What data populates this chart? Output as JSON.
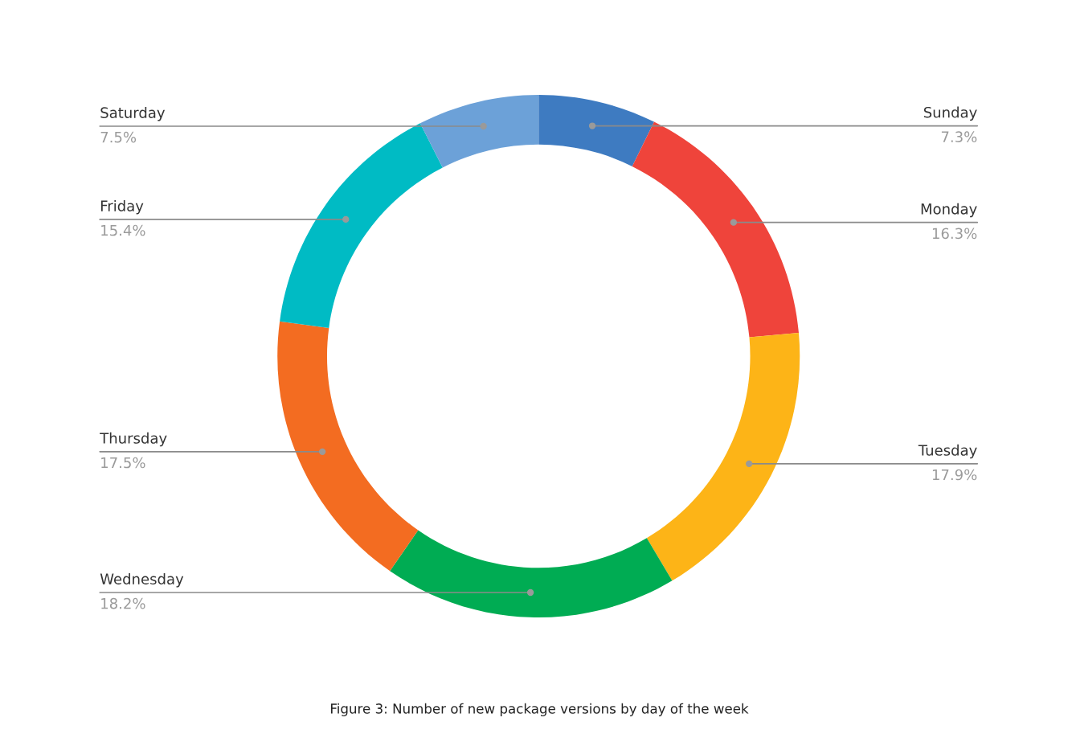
{
  "chart_data": {
    "type": "donut",
    "categories": [
      "Sunday",
      "Monday",
      "Tuesday",
      "Wednesday",
      "Thursday",
      "Friday",
      "Saturday"
    ],
    "values": [
      7.3,
      16.3,
      17.9,
      18.2,
      17.5,
      15.4,
      7.5
    ],
    "colors": [
      "#3e7bc1",
      "#ef443b",
      "#fdb417",
      "#00ac53",
      "#f36c21",
      "#00bbc4",
      "#6ca1d8"
    ],
    "value_labels": [
      "7.3%",
      "16.3%",
      "17.9%",
      "18.2%",
      "17.5%",
      "15.4%",
      "7.5%"
    ],
    "annotations": [
      "Figure 3: Number of new package versions by day of the week"
    ]
  }
}
